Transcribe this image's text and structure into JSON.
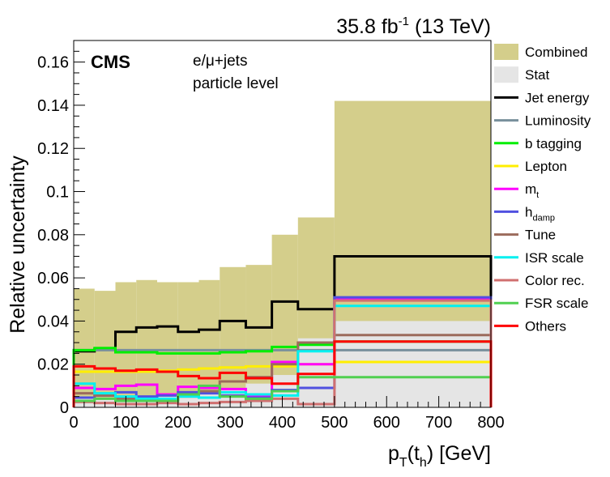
{
  "header": {
    "lumi_prefix": "35.8 fb",
    "lumi_exp": "-1",
    "lumi_suffix": " (13 TeV)"
  },
  "labels": {
    "experiment": "CMS",
    "channel": "e/μ+jets",
    "level": "particle level"
  },
  "chart_data": {
    "type": "histogram",
    "xlabel": "p_T(t_h) [GeV]",
    "ylabel": "Relative uncertainty",
    "xlim": [
      0,
      800
    ],
    "ylim": [
      0,
      0.17
    ],
    "xticks": [
      0,
      100,
      200,
      300,
      400,
      500,
      600,
      700,
      800
    ],
    "yticks": [
      0,
      0.02,
      0.04,
      0.06,
      0.08,
      0.1,
      0.12,
      0.14,
      0.16
    ],
    "xtick_labels": [
      "0",
      "100",
      "200",
      "300",
      "400",
      "500",
      "600",
      "700",
      "800"
    ],
    "ytick_labels": [
      "0",
      "0.02",
      "0.04",
      "0.06",
      "0.08",
      "0.1",
      "0.12",
      "0.14",
      "0.16"
    ],
    "bin_edges": [
      0,
      40,
      80,
      120,
      160,
      200,
      240,
      280,
      330,
      380,
      430,
      500,
      800
    ],
    "legend_position": "right, outside plot",
    "series": [
      {
        "name": "Combined",
        "style": "fill",
        "color": "#d4ce8b",
        "values": [
          0.055,
          0.054,
          0.058,
          0.059,
          0.058,
          0.058,
          0.059,
          0.065,
          0.066,
          0.08,
          0.088,
          0.142
        ]
      },
      {
        "name": "Stat",
        "style": "fill",
        "color": "#e5e5e5",
        "values": [
          0.004,
          0.004,
          0.004,
          0.005,
          0.005,
          0.006,
          0.007,
          0.009,
          0.011,
          0.015,
          0.032,
          0.04
        ]
      },
      {
        "name": "Jet energy",
        "style": "line",
        "color": "#000000",
        "values": [
          0.026,
          0.027,
          0.035,
          0.037,
          0.0375,
          0.035,
          0.036,
          0.04,
          0.037,
          0.049,
          0.0455,
          0.07
        ]
      },
      {
        "name": "Luminosity",
        "style": "line",
        "color": "#78909c",
        "values": [
          0.0265,
          0.0265,
          0.0265,
          0.0265,
          0.0265,
          0.0265,
          0.0265,
          0.0265,
          0.0265,
          0.0265,
          0.0265,
          0.0265
        ]
      },
      {
        "name": "b tagging",
        "style": "line",
        "color": "#00ee00",
        "values": [
          0.0265,
          0.0275,
          0.0255,
          0.0255,
          0.025,
          0.025,
          0.025,
          0.0255,
          0.026,
          0.028,
          0.029,
          0.0305
        ]
      },
      {
        "name": "Lepton",
        "style": "line",
        "color": "#ffee00",
        "values": [
          0.0165,
          0.0165,
          0.0165,
          0.0165,
          0.017,
          0.0175,
          0.018,
          0.0185,
          0.019,
          0.019,
          0.02,
          0.021
        ]
      },
      {
        "name": "m_t",
        "style": "line",
        "color": "#ff00ff",
        "values": [
          0.009,
          0.0085,
          0.01,
          0.0105,
          0.006,
          0.0095,
          0.009,
          0.0085,
          0.0055,
          0.021,
          0.02,
          0.05
        ]
      },
      {
        "name": "h_damp",
        "style": "line",
        "color": "#5050e0",
        "values": [
          0.0045,
          0.0055,
          0.007,
          0.005,
          0.0055,
          0.007,
          0.0065,
          0.0055,
          0.0045,
          0.008,
          0.009,
          0.051
        ]
      },
      {
        "name": "Tune",
        "style": "line",
        "color": "#9c6b5c",
        "values": [
          0.0065,
          0.0055,
          0.004,
          0.0035,
          0.0035,
          0.005,
          0.0075,
          0.012,
          0.014,
          0.02,
          0.03,
          0.0335
        ]
      },
      {
        "name": "ISR scale",
        "style": "line",
        "color": "#00f0f0",
        "values": [
          0.011,
          0.0065,
          0.005,
          0.004,
          0.004,
          0.005,
          0.0045,
          0.007,
          0.006,
          0.0055,
          0.026,
          0.047
        ]
      },
      {
        "name": "Color rec.",
        "style": "line",
        "color": "#d07070",
        "values": [
          0.0025,
          0.002,
          0.0015,
          0.0015,
          0.002,
          0.0015,
          0.002,
          0.0025,
          0.003,
          0.004,
          0.0015,
          0.0495
        ]
      },
      {
        "name": "FSR scale",
        "style": "line",
        "color": "#50d050",
        "values": [
          0.003,
          0.004,
          0.003,
          0.003,
          0.003,
          0.006,
          0.01,
          0.005,
          0.004,
          0.0075,
          0.014,
          0.014
        ]
      },
      {
        "name": "Others",
        "style": "line",
        "color": "#ff0000",
        "values": [
          0.019,
          0.018,
          0.017,
          0.0175,
          0.0165,
          0.0145,
          0.0135,
          0.016,
          0.0135,
          0.011,
          0.0155,
          0.0305
        ]
      }
    ]
  }
}
